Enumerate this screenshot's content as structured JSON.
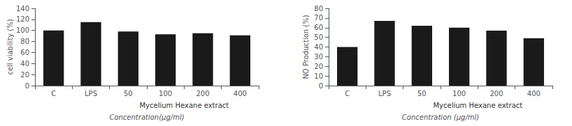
{
  "chart_data": [
    {
      "type": "bar",
      "categories": [
        "C",
        "LPS",
        "50",
        "100",
        "200",
        "400"
      ],
      "values": [
        100,
        115,
        98,
        93,
        95,
        91
      ],
      "color": "#1a1a1a",
      "ylabel": "cell viability (%)",
      "xlabel": "Concentration(μg/ml)",
      "annotations": [
        "Mycelium Hexane extract"
      ],
      "ylim": [
        0,
        140
      ],
      "yticks": [
        0,
        20,
        40,
        60,
        80,
        100,
        120,
        140
      ],
      "grid": false
    },
    {
      "type": "bar",
      "categories": [
        "C",
        "LPS",
        "50",
        "100",
        "200",
        "400"
      ],
      "values": [
        40,
        67,
        62,
        60,
        57,
        49
      ],
      "color": "#1a1a1a",
      "ylabel": "NO Production (%)",
      "xlabel": "Concentration (μg/ml)",
      "annotations": [
        "Mycelium Hexane extract"
      ],
      "ylim": [
        0,
        80
      ],
      "yticks": [
        0,
        10,
        20,
        30,
        40,
        50,
        60,
        70,
        80
      ],
      "grid": false
    }
  ]
}
